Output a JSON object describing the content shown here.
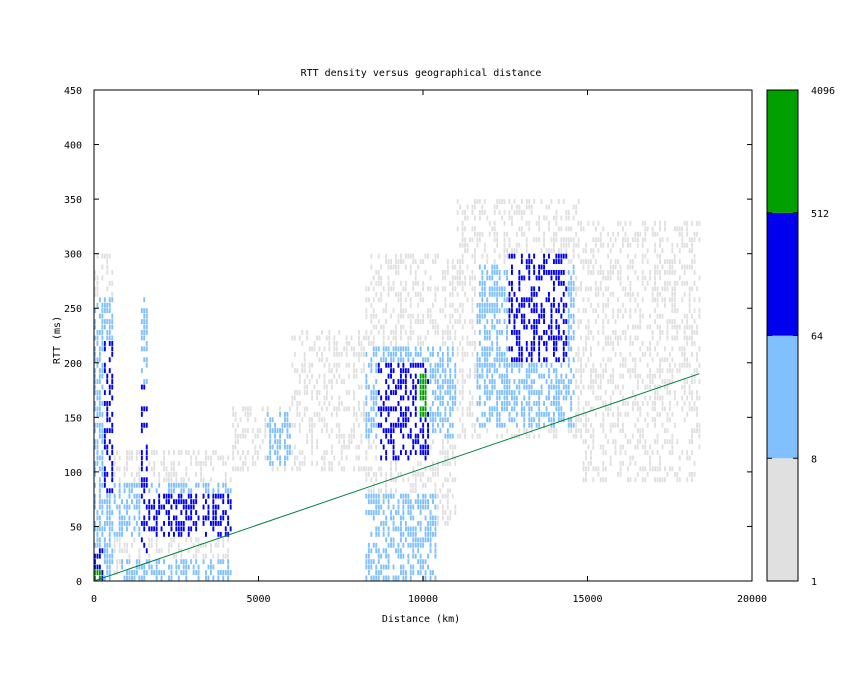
{
  "chart_data": {
    "type": "heatmap",
    "title": "RTT density versus geographical distance",
    "xlabel": "Distance (km)",
    "ylabel": "RTT (ms)",
    "xlim": [
      0,
      20000
    ],
    "ylim": [
      0,
      450
    ],
    "x_ticks": [
      "0",
      "5000",
      "10000",
      "15000",
      "20000"
    ],
    "y_ticks": [
      "0",
      "50",
      "100",
      "150",
      "200",
      "250",
      "300",
      "350",
      "400",
      "450"
    ],
    "colorbar": {
      "scale": "log",
      "ticks": [
        "1",
        "8",
        "64",
        "512",
        "4096"
      ],
      "bins": [
        {
          "from": 1,
          "to": 8,
          "color": "#e0e0e0"
        },
        {
          "from": 8,
          "to": 64,
          "color": "#80c0ff"
        },
        {
          "from": 64,
          "to": 512,
          "color": "#0000ee"
        },
        {
          "from": 512,
          "to": 4096,
          "color": "#00a000"
        }
      ]
    },
    "density_regions": [
      {
        "x": [
          0,
          600
        ],
        "y": [
          0,
          300
        ],
        "level": 1
      },
      {
        "x": [
          0,
          600
        ],
        "y": [
          0,
          260
        ],
        "level": 2
      },
      {
        "x": [
          300,
          600
        ],
        "y": [
          80,
          220
        ],
        "level": 3
      },
      {
        "x": [
          0,
          300
        ],
        "y": [
          0,
          30
        ],
        "level": 3
      },
      {
        "x": [
          0,
          200
        ],
        "y": [
          0,
          8
        ],
        "level": 4
      },
      {
        "x": [
          1400,
          1600
        ],
        "y": [
          0,
          260
        ],
        "level": 2
      },
      {
        "x": [
          1400,
          1600
        ],
        "y": [
          20,
          180
        ],
        "level": 3
      },
      {
        "x": [
          600,
          4200
        ],
        "y": [
          0,
          120
        ],
        "level": 1
      },
      {
        "x": [
          600,
          4200
        ],
        "y": [
          40,
          90
        ],
        "level": 2
      },
      {
        "x": [
          1500,
          4200
        ],
        "y": [
          40,
          80
        ],
        "level": 3
      },
      {
        "x": [
          800,
          4200
        ],
        "y": [
          0,
          20
        ],
        "level": 2
      },
      {
        "x": [
          4200,
          6000
        ],
        "y": [
          100,
          160
        ],
        "level": 1
      },
      {
        "x": [
          5200,
          6000
        ],
        "y": [
          105,
          155
        ],
        "level": 2
      },
      {
        "x": [
          6000,
          8200
        ],
        "y": [
          100,
          230
        ],
        "level": 1
      },
      {
        "x": [
          8200,
          11000
        ],
        "y": [
          50,
          300
        ],
        "level": 1
      },
      {
        "x": [
          8200,
          11000
        ],
        "y": [
          130,
          215
        ],
        "level": 2
      },
      {
        "x": [
          8600,
          10200
        ],
        "y": [
          110,
          200
        ],
        "level": 3
      },
      {
        "x": [
          8200,
          10400
        ],
        "y": [
          0,
          80
        ],
        "level": 2
      },
      {
        "x": [
          9900,
          10100
        ],
        "y": [
          150,
          190
        ],
        "level": 4
      },
      {
        "x": [
          11000,
          14800
        ],
        "y": [
          130,
          350
        ],
        "level": 1
      },
      {
        "x": [
          11600,
          14600
        ],
        "y": [
          140,
          290
        ],
        "level": 2
      },
      {
        "x": [
          12600,
          14400
        ],
        "y": [
          200,
          300
        ],
        "level": 3
      },
      {
        "x": [
          14800,
          18400
        ],
        "y": [
          90,
          330
        ],
        "level": 1
      }
    ],
    "series": [
      {
        "type": "line",
        "x": [
          0,
          18400
        ],
        "y": [
          0,
          190
        ],
        "color": "#008040"
      }
    ]
  }
}
